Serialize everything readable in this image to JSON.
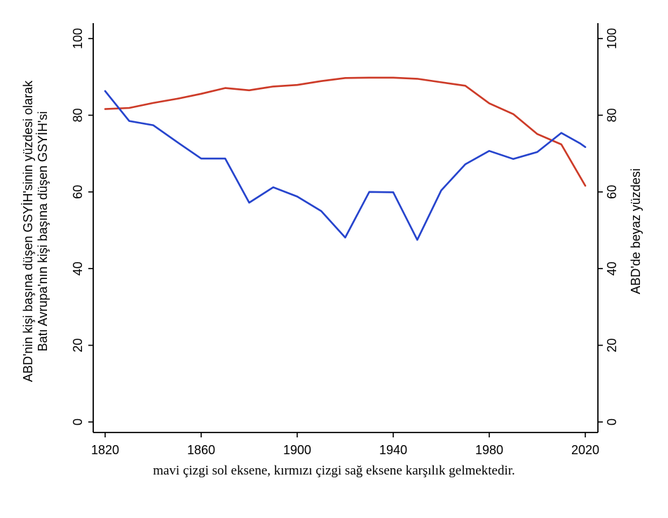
{
  "figure": {
    "left_axis_title_line1": "ABD'nin kişi başına düşen GSYİH'sinin yüzdesi olarak",
    "left_axis_title_line2": "Batı Avrupa'nın kişi başına düşen GSYİH'si",
    "right_axis_title": "ABD'de beyaz yüzdesi",
    "caption": "mavi çizgi sol eksene, kırmızı çizgi sağ eksene karşılık gelmektedir."
  },
  "colors": {
    "blue_line": "#2644cd",
    "red_line": "#cd3b28",
    "axis": "#000000",
    "background": "#ffffff"
  },
  "chart_data": {
    "type": "line",
    "title": "",
    "xlabel": "",
    "grid": false,
    "legend_position": "none",
    "xlim": [
      1820,
      2020
    ],
    "x_ticks": [
      1820,
      1860,
      1900,
      1940,
      1980,
      2020
    ],
    "y_ticks": [
      0,
      20,
      40,
      60,
      80,
      100
    ],
    "left_axis": {
      "label": "ABD'nin kişi başına düşen GSYİH'sinin yüzdesi olarak Batı Avrupa'nın kişi başına düşen GSYİH'si",
      "range": [
        0,
        100
      ]
    },
    "right_axis": {
      "label": "ABD'de beyaz yüzdesi",
      "range": [
        0,
        100
      ]
    },
    "series": [
      {
        "name": "mavi çizgi (sol eksen)",
        "axis": "left",
        "color": "#2644cd",
        "x": [
          1820,
          1830,
          1840,
          1850,
          1860,
          1870,
          1880,
          1890,
          1900,
          1910,
          1920,
          1930,
          1940,
          1950,
          1960,
          1970,
          1980,
          1990,
          2000,
          2010,
          2018,
          2020
        ],
        "y": [
          86.3,
          78.5,
          77.4,
          73.0,
          68.7,
          68.7,
          57.2,
          61.2,
          58.8,
          55.0,
          48.1,
          60.0,
          59.9,
          47.5,
          60.4,
          67.2,
          70.7,
          68.6,
          70.4,
          75.4,
          72.6,
          71.7
        ]
      },
      {
        "name": "kırmızı çizgi (sağ eksen)",
        "axis": "right",
        "color": "#cd3b28",
        "x": [
          1820,
          1830,
          1840,
          1850,
          1860,
          1870,
          1880,
          1890,
          1900,
          1910,
          1920,
          1930,
          1940,
          1950,
          1960,
          1970,
          1980,
          1990,
          2000,
          2010,
          2020
        ],
        "y": [
          81.6,
          81.9,
          83.2,
          84.3,
          85.6,
          87.1,
          86.5,
          87.5,
          87.9,
          88.9,
          89.7,
          89.8,
          89.8,
          89.5,
          88.6,
          87.7,
          83.1,
          80.3,
          75.1,
          72.4,
          61.6
        ]
      }
    ]
  }
}
